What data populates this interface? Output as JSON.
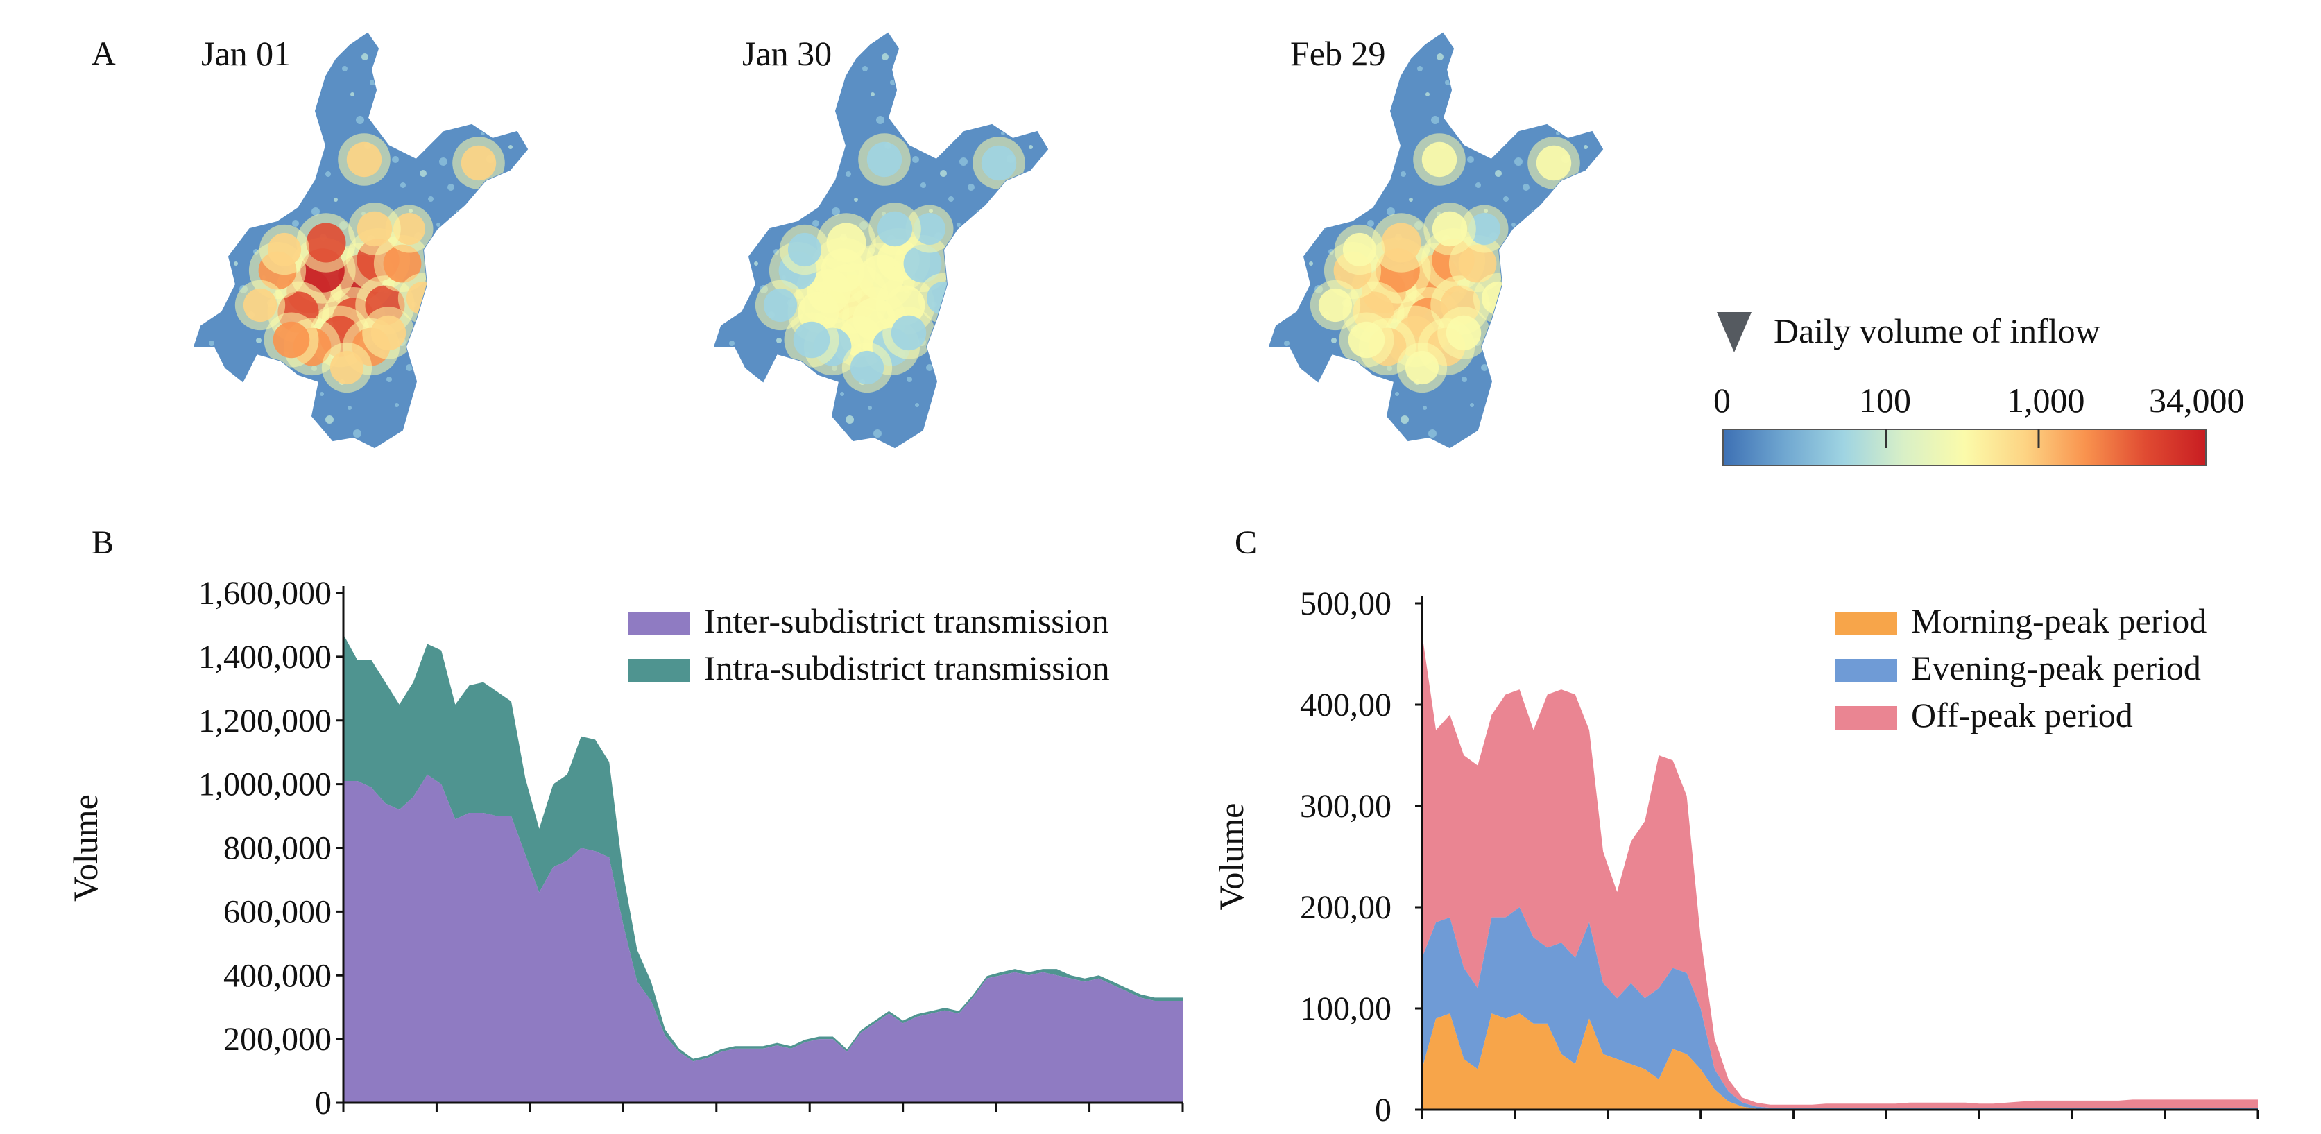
{
  "panels": {
    "a": {
      "letter": "A"
    },
    "b": {
      "letter": "B"
    },
    "c": {
      "letter": "C"
    }
  },
  "maps": [
    {
      "date": "Jan 01",
      "intensity": 1.0
    },
    {
      "date": "Jan 30",
      "intensity": 0.5
    },
    {
      "date": "Feb 29",
      "intensity": 0.72
    }
  ],
  "inflow_legend": {
    "title": "Daily volume of inflow",
    "icon": "down-triangle-icon",
    "tick_labels": [
      "0",
      "100",
      "1,000",
      "34,000"
    ],
    "colors": [
      "#3d70b4",
      "#6fa6d0",
      "#9fd4e2",
      "#d9f0c6",
      "#fbfbaa",
      "#fdd484",
      "#f9934e",
      "#e04b32",
      "#c81d22"
    ]
  },
  "chart_data": [
    {
      "type": "area",
      "stacked": true,
      "title": "",
      "xlabel": "",
      "ylabel": "Volume",
      "ylim": [
        0,
        1600000
      ],
      "yticks": [
        "0",
        "200,000",
        "400,000",
        "600,000",
        "800,000",
        "1,000,000",
        "1,200,000",
        "1,400,000",
        "1,600,000"
      ],
      "x_days": 61,
      "legend_position": "top-right",
      "grid": false,
      "series": [
        {
          "name": "Inter-subdistrict transmission",
          "color": "#8f7bc2",
          "values": [
            1010000,
            1010000,
            990000,
            940000,
            920000,
            960000,
            1030000,
            1000000,
            890000,
            910000,
            910000,
            900000,
            900000,
            780000,
            660000,
            740000,
            760000,
            800000,
            790000,
            770000,
            560000,
            380000,
            320000,
            210000,
            160000,
            130000,
            140000,
            160000,
            170000,
            170000,
            170000,
            180000,
            170000,
            190000,
            200000,
            200000,
            160000,
            220000,
            250000,
            280000,
            250000,
            270000,
            280000,
            290000,
            280000,
            330000,
            390000,
            400000,
            410000,
            400000,
            410000,
            400000,
            390000,
            380000,
            390000,
            370000,
            350000,
            330000,
            320000,
            320000,
            320000
          ]
        },
        {
          "name": "Intra-subdistrict transmission",
          "color": "#4f9490",
          "values": [
            460000,
            380000,
            400000,
            380000,
            330000,
            360000,
            410000,
            420000,
            360000,
            400000,
            410000,
            390000,
            360000,
            240000,
            200000,
            260000,
            270000,
            350000,
            350000,
            300000,
            160000,
            100000,
            60000,
            20000,
            10000,
            8000,
            8000,
            8000,
            8000,
            8000,
            8000,
            8000,
            8000,
            8000,
            8000,
            8000,
            8000,
            8000,
            8000,
            8000,
            8000,
            8000,
            8000,
            8000,
            8000,
            8000,
            8000,
            10000,
            10000,
            10000,
            10000,
            20000,
            10000,
            10000,
            10000,
            10000,
            10000,
            10000,
            10000,
            10000,
            10000
          ]
        }
      ]
    },
    {
      "type": "area",
      "stacked": true,
      "title": "",
      "xlabel": "",
      "ylabel": "Volume",
      "ylim": [
        0,
        500
      ],
      "yticks": [
        "0",
        "100,00",
        "200,00",
        "300,00",
        "400,00",
        "500,00"
      ],
      "x_days": 61,
      "legend_position": "top-right",
      "grid": false,
      "series": [
        {
          "name": "Morning-peak period",
          "color": "#f7a54a",
          "values": [
            40,
            90,
            95,
            50,
            40,
            95,
            90,
            95,
            85,
            85,
            55,
            45,
            90,
            55,
            50,
            45,
            40,
            30,
            60,
            55,
            40,
            20,
            8,
            3,
            1,
            1,
            1,
            1,
            1,
            1,
            1,
            1,
            1,
            1,
            1,
            1,
            1,
            1,
            1,
            1,
            1,
            1,
            1,
            1,
            1,
            1,
            1,
            1,
            1,
            1,
            1,
            1,
            1,
            1,
            1,
            1,
            1,
            1,
            1,
            1,
            1
          ]
        },
        {
          "name": "Evening-peak period",
          "color": "#6f9bd6",
          "values": [
            110,
            95,
            95,
            90,
            80,
            95,
            100,
            105,
            85,
            75,
            110,
            105,
            95,
            70,
            60,
            80,
            70,
            90,
            80,
            80,
            60,
            20,
            10,
            4,
            2,
            1,
            1,
            1,
            1,
            1,
            1,
            1,
            1,
            1,
            1,
            1,
            1,
            1,
            1,
            1,
            1,
            1,
            1,
            1,
            1,
            1,
            1,
            1,
            1,
            1,
            1,
            1,
            1,
            1,
            1,
            1,
            1,
            1,
            1,
            1,
            1
          ]
        },
        {
          "name": "Off-peak period",
          "color": "#ea8592",
          "values": [
            320,
            190,
            200,
            210,
            220,
            200,
            220,
            215,
            205,
            250,
            250,
            260,
            190,
            130,
            105,
            140,
            175,
            230,
            205,
            175,
            70,
            30,
            12,
            5,
            4,
            3,
            3,
            3,
            3,
            4,
            4,
            4,
            4,
            4,
            4,
            5,
            5,
            5,
            5,
            5,
            4,
            4,
            5,
            6,
            7,
            7,
            7,
            7,
            7,
            7,
            7,
            8,
            8,
            8,
            8,
            8,
            8,
            8,
            8,
            8,
            8
          ]
        }
      ]
    }
  ]
}
